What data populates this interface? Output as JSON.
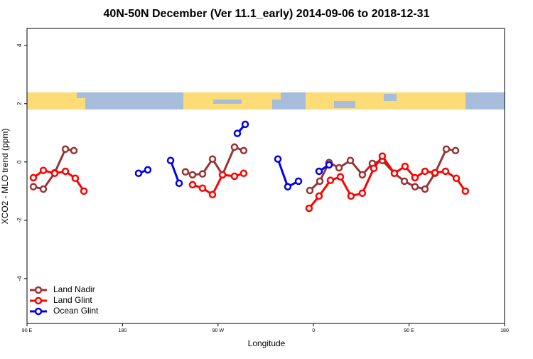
{
  "chart_data": {
    "type": "line",
    "title": "40N-50N December (Ver 11.1_early)   2014-09-06 to 2018-12-31",
    "x_label": "Longitude",
    "y_label": "XCO2 - MLO trend (ppm)",
    "xlim": [
      90,
      540
    ],
    "ylim": [
      -5.54,
      4.58
    ],
    "xticks": [
      {
        "value": 90,
        "label": "90 E"
      },
      180,
      {
        "value": 270,
        "label": "90 W"
      },
      {
        "value": 360,
        "label": "0"
      },
      {
        "value": 450,
        "label": "90 E"
      },
      {
        "value": 540,
        "label": "180"
      }
    ],
    "yticks": [
      -4,
      -2,
      0,
      2,
      4
    ],
    "legend": "bottom-left",
    "series": [
      {
        "name": "Land Nadir",
        "color": "#993333",
        "x": [
          96.0,
          105.4,
          116.1,
          126.2,
          134.2,
          null,
          239.3,
          246.0,
          255.4,
          264.8,
          274.2,
          285.5,
          294.2,
          null,
          356.5,
          365.9,
          374.6,
          384.0,
          394.7,
          406.0,
          415.4,
          424.8,
          436.2,
          445.6,
          455.6,
          465.0,
          474.4,
          485.1,
          493.8
        ],
        "values": [
          -0.85,
          -0.93,
          -0.37,
          0.44,
          0.39,
          null,
          -0.34,
          -0.44,
          -0.41,
          0.1,
          -0.44,
          0.51,
          0.39,
          null,
          -0.98,
          -0.66,
          -0.02,
          -0.2,
          0.05,
          -0.44,
          -0.05,
          0.05,
          -0.39,
          -0.66,
          -0.85,
          -0.93,
          -0.39,
          0.44,
          0.39
        ]
      },
      {
        "name": "Land Glint",
        "color": "#ff0000",
        "x": [
          96.0,
          105.4,
          116.1,
          126.2,
          135.5,
          143.6,
          null,
          246.0,
          255.4,
          264.8,
          274.2,
          285.5,
          294.2,
          null,
          355.8,
          365.2,
          375.9,
          385.3,
          395.3,
          406.0,
          416.8,
          424.8,
          436.2,
          446.2,
          455.6,
          465.0,
          474.4,
          484.4,
          494.5,
          503.1
        ],
        "values": [
          -0.54,
          -0.29,
          -0.39,
          -0.32,
          -0.56,
          -1.0,
          null,
          -0.78,
          -0.9,
          -1.12,
          -0.44,
          -0.49,
          -0.39,
          null,
          -1.59,
          -1.17,
          -0.63,
          -0.51,
          -1.17,
          -1.07,
          -0.22,
          0.2,
          -0.39,
          -0.15,
          -0.54,
          -0.32,
          -0.37,
          -0.32,
          -0.56,
          -1.0
        ]
      },
      {
        "name": "Ocean Glint",
        "color": "#0000ee",
        "x": [
          195.1,
          203.8,
          null,
          225.3,
          233.3,
          null,
          288.2,
          295.6,
          null,
          326.4,
          335.7,
          345.8,
          null,
          365.2,
          374.6
        ],
        "values": [
          -0.39,
          -0.27,
          null,
          0.05,
          -0.73,
          null,
          0.98,
          1.29,
          null,
          0.1,
          -0.85,
          -0.66,
          null,
          -0.32,
          -0.1
        ]
      }
    ]
  }
}
